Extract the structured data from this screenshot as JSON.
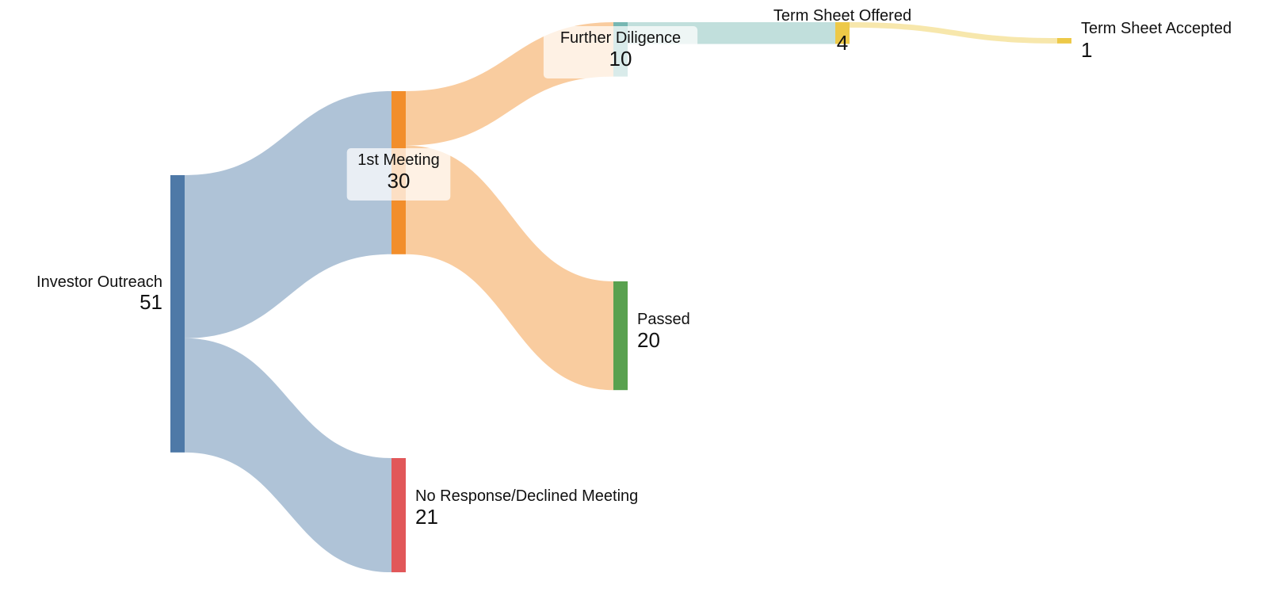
{
  "chart_data": {
    "type": "sankey",
    "nodes": [
      {
        "id": "outreach",
        "name": "Investor Outreach",
        "value": 51,
        "color": "#4e79a7"
      },
      {
        "id": "meeting",
        "name": "1st Meeting",
        "value": 30,
        "color": "#f28e2b"
      },
      {
        "id": "noresp",
        "name": "No Response/Declined Meeting",
        "value": 21,
        "color": "#e15759"
      },
      {
        "id": "diligence",
        "name": "Further Diligence",
        "value": 10,
        "color": "#76b7b2"
      },
      {
        "id": "passed",
        "name": "Passed",
        "value": 20,
        "color": "#59a14f"
      },
      {
        "id": "offered",
        "name": "Term Sheet Offered",
        "value": 4,
        "color": "#edc948"
      },
      {
        "id": "accepted",
        "name": "Term Sheet Accepted",
        "value": 1,
        "color": "#edc948"
      }
    ],
    "links": [
      {
        "source": "outreach",
        "target": "meeting",
        "value": 30
      },
      {
        "source": "outreach",
        "target": "noresp",
        "value": 21
      },
      {
        "source": "meeting",
        "target": "diligence",
        "value": 10
      },
      {
        "source": "meeting",
        "target": "passed",
        "value": 20
      },
      {
        "source": "diligence",
        "target": "offered",
        "value": 4
      },
      {
        "source": "offered",
        "target": "accepted",
        "value": 1
      }
    ]
  }
}
